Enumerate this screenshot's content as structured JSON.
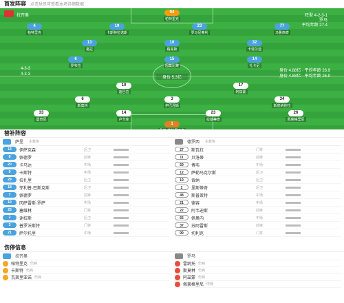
{
  "lineup": {
    "title": "首发阵容",
    "subtitle": "点击球员可查看本场详细数据"
  },
  "pitch": {
    "home_team": "拉齐奥",
    "away_team": "罗马",
    "away_formation": "阵型 4-2-3-1",
    "away_note": "平均年龄 27.4",
    "home_form": "4-3-3",
    "home_form2": "4-3-3",
    "mid_label": "身价 5.3亿",
    "stat_right_1": "身价 4.88亿 · 平均年龄 26.9",
    "stat_right_2": "身价 4.88亿 · 平均年龄 26.9"
  },
  "pitch_players": [
    {
      "num": "94",
      "name": "帕特里克",
      "type": "keeper-h"
    },
    {
      "num": "4",
      "name": "帕特里克",
      "type": "home"
    },
    {
      "num": "19",
      "name": "卡斯特拉诺斯",
      "type": "home"
    },
    {
      "num": "23",
      "name": "罗马尼奥利",
      "type": "home"
    },
    {
      "num": "77",
      "name": "马鲁西奇",
      "type": "home"
    },
    {
      "num": "13",
      "name": "格拉",
      "type": "home"
    },
    {
      "num": "10",
      "name": "路易斯",
      "type": "home"
    },
    {
      "num": "32",
      "name": "卡塔尔迪",
      "type": "home"
    },
    {
      "num": "6",
      "name": "罗韦拉",
      "type": "home"
    },
    {
      "num": "15",
      "name": "因莫比莱",
      "type": "home"
    },
    {
      "num": "14",
      "name": "扎卡尼",
      "type": "home"
    },
    {
      "num": "10",
      "name": "迪巴拉",
      "type": "away"
    },
    {
      "num": "17",
      "name": "阿兹蒙",
      "type": "away"
    },
    {
      "num": "6",
      "name": "斯莫林",
      "type": "away"
    },
    {
      "num": "3",
      "name": "伊巴涅斯",
      "type": "away"
    },
    {
      "num": "34",
      "name": "斯皮纳佐拉",
      "type": "away"
    },
    {
      "num": "33",
      "name": "曼奇尼",
      "type": "away"
    },
    {
      "num": "14",
      "name": "卢卡库",
      "type": "away"
    },
    {
      "num": "23",
      "name": "拉基蒂奇",
      "type": "away"
    },
    {
      "num": "26",
      "name": "佩莱格里尼",
      "type": "away"
    },
    {
      "num": "1",
      "name": "鲁伊·帕特里西奥",
      "type": "keeper-a"
    }
  ],
  "subs": {
    "title": "替补阵容",
    "home": {
      "coach": "萨里",
      "role": "主教练",
      "players": [
        {
          "num": "13",
          "name": "伊萨克森",
          "pos": "后卫"
        },
        {
          "num": "8",
          "name": "佩德罗",
          "pos": "前锋"
        },
        {
          "num": "20",
          "name": "卡马达",
          "pos": "中场"
        },
        {
          "num": "9",
          "name": "卡斯特",
          "pos": "中场"
        },
        {
          "num": "29",
          "name": "拉扎里",
          "pos": "后卫"
        },
        {
          "num": "18",
          "name": "菲利普·巴斯克斯",
          "pos": "后卫"
        },
        {
          "num": "7",
          "name": "佩德罗",
          "pos": "前锋"
        },
        {
          "num": "10",
          "name": "冈萨雷斯·罗萨",
          "pos": "中场"
        },
        {
          "num": "25",
          "name": "塞维林",
          "pos": "门将"
        },
        {
          "num": "2",
          "name": "谢拉斯",
          "pos": "后卫"
        },
        {
          "num": "3",
          "name": "普罗沃斯特",
          "pos": "门将"
        },
        {
          "num": "21",
          "name": "萨尔托里",
          "pos": "中场"
        }
      ]
    },
    "away": {
      "coach": "德罗西",
      "role": "主教练",
      "players": [
        {
          "num": "27",
          "name": "斯瓦拉",
          "pos": "门将"
        },
        {
          "num": "11",
          "name": "贝洛蒂",
          "pos": "前锋"
        },
        {
          "num": "59",
          "name": "博韦",
          "pos": "中场"
        },
        {
          "num": "12",
          "name": "萨勒马克尔斯",
          "pos": "后卫"
        },
        {
          "num": "19",
          "name": "肯纳",
          "pos": "后卫"
        },
        {
          "num": "2",
          "name": "里斯蒂奇",
          "pos": "后卫"
        },
        {
          "num": "48",
          "name": "斯普莱特",
          "pos": "中场"
        },
        {
          "num": "21",
          "name": "德容",
          "pos": "中场"
        },
        {
          "num": "22",
          "name": "阿韦迪斯",
          "pos": "前锋"
        },
        {
          "num": "66",
          "name": "佩奥内",
          "pos": "中场"
        },
        {
          "num": "37",
          "name": "苏阿雷斯",
          "pos": "前锋"
        },
        {
          "num": "99",
          "name": "切利克",
          "pos": "门将"
        }
      ]
    }
  },
  "injuries": {
    "title": "伤停信息",
    "home": {
      "coach": "拉齐奥",
      "items": [
        {
          "name": "帕特里克",
          "note": "伤病"
        },
        {
          "name": "卡斯特",
          "note": "伤病"
        },
        {
          "name": "瓦莱里亚诺",
          "note": "伤病"
        }
      ]
    },
    "away": {
      "coach": "罗马",
      "items": [
        {
          "name": "雷纳托",
          "note": "伤病"
        },
        {
          "name": "斯莫林",
          "note": "伤病"
        },
        {
          "name": "阿兹蒙",
          "note": "伤病"
        },
        {
          "name": "佩莱格里尼",
          "note": "停赛"
        }
      ]
    }
  }
}
